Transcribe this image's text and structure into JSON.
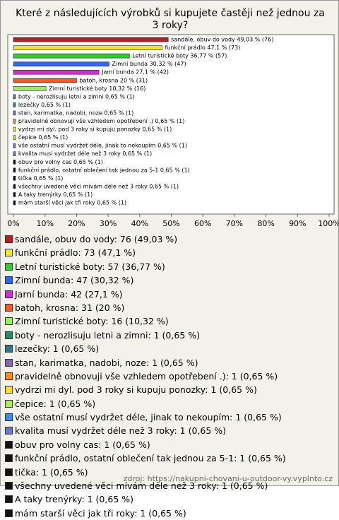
{
  "chart_data": {
    "type": "bar",
    "orientation": "horizontal",
    "title": "Které z následujících výrobků si kupujete častěji než jednou za 3 roky?",
    "categories": [
      "sandále, obuv do vody 49,03 % (76)",
      "funkční prádlo 47,1 % (73)",
      "Letní turistické boty 36,77 % (57)",
      "Zimní bunda 30,32 % (47)",
      "Jarní bunda 27,1 % (42)",
      "batoh, krosna 20 % (31)",
      "Zimní turistické boty 10,32 % (16)",
      "boty - nerozlisuju letni a zimni 0,65 % (1)",
      "lezečky 0,65 % (1)",
      "stan, karimatka, nadobi, noze 0,65 % (1)",
      "pravidelně obnovuji vše vzhledem opotřebení .) 0,65 % (1)",
      "vydrzi mi dyl. pod 3 roky si kupuju ponozky 0,65 % (1)",
      "čepice 0,65 % (1)",
      "vše ostatní musí vydržet déle, jinak to nekoupím 0,65 % (1)",
      "kvalita musí vydržet déle než 3 roky 0,65 % (1)",
      "obuv pro volny cas 0,65 % (1)",
      "funkční prádlo, ostatní oblečení tak jednou za 5-1 0,65 % (1)",
      "tička 0,65 % (1)",
      "všechny uvedené věci mívám déle než 3 roky 0,65 % (1)",
      "A taky trenýrky 0,65 % (1)",
      "mám starší věci jak tři roky 0,65 % (1)"
    ],
    "values": [
      49.03,
      47.1,
      36.77,
      30.32,
      27.1,
      20,
      10.32,
      0.65,
      0.65,
      0.65,
      0.65,
      0.65,
      0.65,
      0.65,
      0.65,
      0.65,
      0.65,
      0.65,
      0.65,
      0.65,
      0.65
    ],
    "colors": [
      "#b22222",
      "#f2e62a",
      "#33cc33",
      "#3366ee",
      "#cc33cc",
      "#ff5522",
      "#99ee66",
      "#2a8a6a",
      "#2a7a8a",
      "#8866aa",
      "#ff8822",
      "#ffdd22",
      "#aaee55",
      "#4488ee",
      "#6677cc",
      "#111111",
      "#111111",
      "#111111",
      "#111111",
      "#111111",
      "#111111"
    ],
    "legend": [
      "sandále, obuv do vody: 76 (49,03 %)",
      "funkční prádlo: 73 (47,1 %)",
      "Letní turistické boty: 57 (36,77 %)",
      "Zimní bunda: 47 (30,32 %)",
      "Jarní bunda: 42 (27,1 %)",
      "batoh, krosna: 31 (20 %)",
      "Zimní turistické boty: 16 (10,32 %)",
      "boty - nerozlisuju letni a zimni: 1 (0,65 %)",
      "lezečky: 1 (0,65 %)",
      "stan, karimatka, nadobi, noze: 1 (0,65 %)",
      "pravidelně obnovuji vše vzhledem opotřebení .): 1 (0,65 %)",
      "vydrzi mi dyl. pod 3 roky si kupuju ponozky: 1 (0,65 %)",
      "čepice: 1 (0,65 %)",
      "vše ostatní musí vydržet déle, jinak to nekoupím: 1 (0,65 %)",
      "kvalita musí vydržet déle než 3 roky: 1 (0,65 %)",
      "obuv pro volny cas: 1 (0,65 %)",
      "funkční prádlo, ostatní oblečení tak jednou za 5-1: 1 (0,65 %)",
      "tička: 1 (0,65 %)",
      "všechny uvedené věci mívám déle než 3 roky: 1 (0,65 %)",
      "A taky trenýrky: 1 (0,65 %)",
      "mám starší věci jak tři roky: 1 (0,65 %)"
    ],
    "xlim": [
      0,
      100
    ],
    "xticks": [
      {
        "value": 0,
        "label": "0%"
      },
      {
        "value": 10,
        "label": "10%"
      },
      {
        "value": 20,
        "label": "20%"
      },
      {
        "value": 30,
        "label": "30%"
      },
      {
        "value": 40,
        "label": "40%"
      },
      {
        "value": 50,
        "label": "50%"
      },
      {
        "value": 60,
        "label": "60%"
      },
      {
        "value": 70,
        "label": "70%"
      },
      {
        "value": 80,
        "label": "80%"
      },
      {
        "value": 90,
        "label": "90%"
      },
      {
        "value": 100,
        "label": "100%"
      }
    ],
    "source": "zdroj: https://nakupni-chovani-u-outdoor-vy.vyplnto.cz"
  }
}
